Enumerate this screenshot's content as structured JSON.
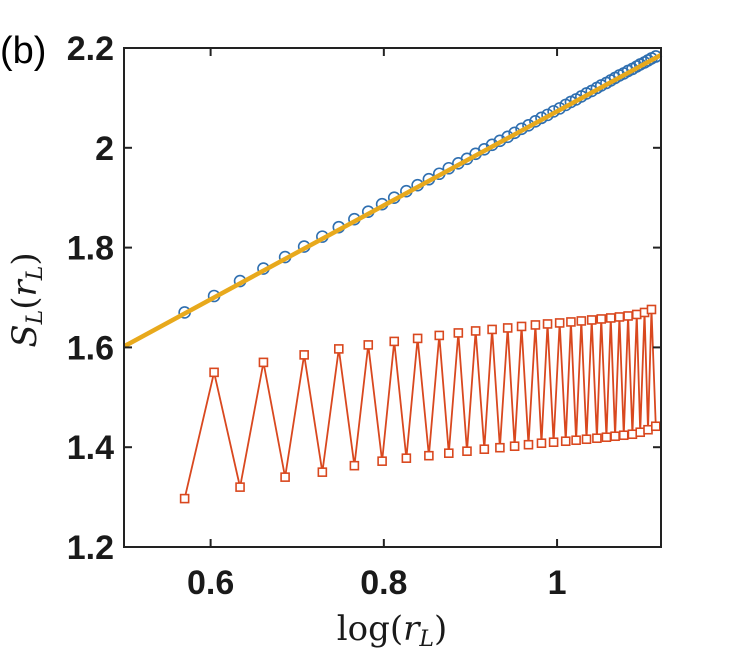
{
  "chart_data": {
    "type": "line",
    "panel_label": "(b)",
    "xlabel": "log(r_L)",
    "ylabel": "S_L(r_L)",
    "xlim": [
      0.5,
      1.12
    ],
    "ylim": [
      1.2,
      2.2
    ],
    "xticks": [
      0.6,
      0.8,
      1
    ],
    "xtick_labels": [
      "0.6",
      "0.8",
      "1"
    ],
    "yticks": [
      1.2,
      1.4,
      1.6,
      1.8,
      2.0,
      2.2
    ],
    "ytick_labels": [
      "1.2",
      "1.4",
      "1.6",
      "1.8",
      "2",
      "2.2"
    ],
    "grid": false,
    "legend": "none",
    "series": [
      {
        "marker": "circle",
        "color": "#2f6fb0",
        "x": [
          0.57,
          0.604,
          0.634,
          0.661,
          0.686,
          0.708,
          0.729,
          0.748,
          0.766,
          0.782,
          0.798,
          0.812,
          0.826,
          0.839,
          0.852,
          0.864,
          0.875,
          0.886,
          0.896,
          0.906,
          0.916,
          0.925,
          0.934,
          0.943,
          0.951,
          0.959,
          0.967,
          0.975,
          0.982,
          0.989,
          0.996,
          1.003,
          1.01,
          1.016,
          1.022,
          1.028,
          1.034,
          1.04,
          1.046,
          1.051,
          1.057,
          1.062,
          1.067,
          1.072,
          1.077,
          1.082,
          1.087,
          1.092,
          1.096,
          1.101,
          1.105,
          1.109,
          1.114
        ],
        "y": [
          1.67,
          1.703,
          1.733,
          1.758,
          1.781,
          1.802,
          1.822,
          1.841,
          1.857,
          1.872,
          1.887,
          1.9,
          1.913,
          1.925,
          1.937,
          1.948,
          1.959,
          1.969,
          1.978,
          1.988,
          1.997,
          2.006,
          2.014,
          2.022,
          2.03,
          2.038,
          2.045,
          2.053,
          2.06,
          2.066,
          2.073,
          2.079,
          2.086,
          2.092,
          2.097,
          2.103,
          2.109,
          2.114,
          2.12,
          2.125,
          2.13,
          2.135,
          2.14,
          2.145,
          2.149,
          2.154,
          2.158,
          2.163,
          2.167,
          2.171,
          2.175,
          2.179,
          2.183
        ]
      },
      {
        "marker": "none",
        "color": "#e8a91c",
        "x": [
          0.5,
          1.12
        ],
        "y": [
          1.602,
          2.186
        ]
      },
      {
        "marker": "square",
        "color": "#d9481f",
        "x": [
          0.57,
          0.604,
          0.634,
          0.661,
          0.686,
          0.708,
          0.729,
          0.748,
          0.766,
          0.782,
          0.798,
          0.812,
          0.826,
          0.839,
          0.852,
          0.864,
          0.875,
          0.886,
          0.896,
          0.906,
          0.916,
          0.925,
          0.934,
          0.943,
          0.951,
          0.959,
          0.967,
          0.975,
          0.982,
          0.989,
          0.996,
          1.003,
          1.01,
          1.016,
          1.022,
          1.028,
          1.034,
          1.04,
          1.046,
          1.051,
          1.057,
          1.062,
          1.067,
          1.072,
          1.077,
          1.082,
          1.087,
          1.092,
          1.096,
          1.101,
          1.105,
          1.109,
          1.114
        ],
        "y": [
          1.297,
          1.55,
          1.32,
          1.57,
          1.34,
          1.585,
          1.35,
          1.597,
          1.363,
          1.605,
          1.372,
          1.612,
          1.378,
          1.618,
          1.383,
          1.624,
          1.388,
          1.629,
          1.392,
          1.633,
          1.396,
          1.636,
          1.399,
          1.639,
          1.402,
          1.642,
          1.405,
          1.645,
          1.408,
          1.647,
          1.41,
          1.649,
          1.412,
          1.651,
          1.414,
          1.653,
          1.416,
          1.655,
          1.418,
          1.657,
          1.42,
          1.659,
          1.422,
          1.661,
          1.424,
          1.663,
          1.426,
          1.666,
          1.43,
          1.67,
          1.435,
          1.676,
          1.442
        ]
      }
    ]
  }
}
